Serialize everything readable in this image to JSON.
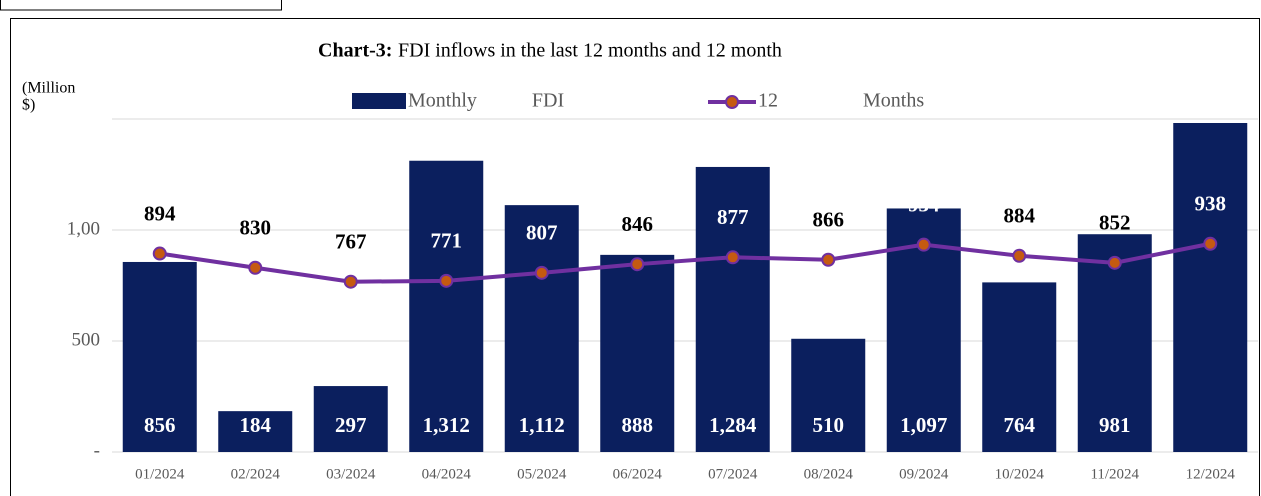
{
  "chart_data": {
    "type": "bar_line",
    "title_label": "Chart-3:",
    "title": "FDI inflows in the last 12 months and 12 month",
    "y_label": [
      "(Million",
      "$)"
    ],
    "categories": [
      "01/2024",
      "02/2024",
      "03/2024",
      "04/2024",
      "05/2024",
      "06/2024",
      "07/2024",
      "08/2024",
      "09/2024",
      "10/2024",
      "11/2024",
      "12/2024"
    ],
    "series": [
      {
        "name": "Monthly FDI",
        "type": "bar",
        "color": "#0b1f5e",
        "values": [
          856,
          184,
          297,
          1312,
          1112,
          888,
          1284,
          510,
          1097,
          764,
          981,
          1482
        ],
        "value_labels": [
          "856",
          "184",
          "297",
          "1,312",
          "1,112",
          "888",
          "1,284",
          "510",
          "1,097",
          "764",
          "981",
          null
        ]
      },
      {
        "name": "12 Months",
        "type": "line",
        "color": "#7030a0",
        "marker_color": "#c55a11",
        "values": [
          894,
          830,
          767,
          771,
          807,
          846,
          877,
          866,
          934,
          884,
          852,
          938
        ]
      }
    ],
    "ylim": [
      0,
      1500
    ],
    "yticks": [
      {
        "value": 0,
        "label": "-"
      },
      500,
      {
        "value": 1000,
        "label": "1,00"
      }
    ],
    "grid": true
  }
}
